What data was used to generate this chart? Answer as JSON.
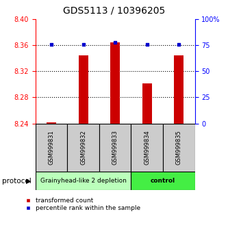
{
  "title": "GDS5113 / 10396205",
  "samples": [
    "GSM999831",
    "GSM999832",
    "GSM999833",
    "GSM999834",
    "GSM999835"
  ],
  "red_values": [
    8.242,
    8.345,
    8.365,
    8.302,
    8.345
  ],
  "blue_values": [
    76,
    76,
    78,
    76,
    76
  ],
  "ylim_left": [
    8.24,
    8.4
  ],
  "ylim_right": [
    0,
    100
  ],
  "yticks_left": [
    8.24,
    8.28,
    8.32,
    8.36,
    8.4
  ],
  "yticks_right": [
    0,
    25,
    50,
    75,
    100
  ],
  "ytick_labels_right": [
    "0",
    "25",
    "50",
    "75",
    "100%"
  ],
  "grid_lines": [
    8.28,
    8.32,
    8.36
  ],
  "bar_color": "#cc0000",
  "dot_color": "#0000cc",
  "protocol_groups": [
    {
      "label": "Grainyhead-like 2 depletion",
      "indices": [
        0,
        1,
        2
      ],
      "color": "#bbffbb"
    },
    {
      "label": "control",
      "indices": [
        3,
        4
      ],
      "color": "#44ee44"
    }
  ],
  "protocol_label": "protocol",
  "legend_red": "transformed count",
  "legend_blue": "percentile rank within the sample",
  "sample_box_color": "#cccccc",
  "title_fontsize": 10,
  "tick_fontsize": 7,
  "bar_width": 0.3
}
